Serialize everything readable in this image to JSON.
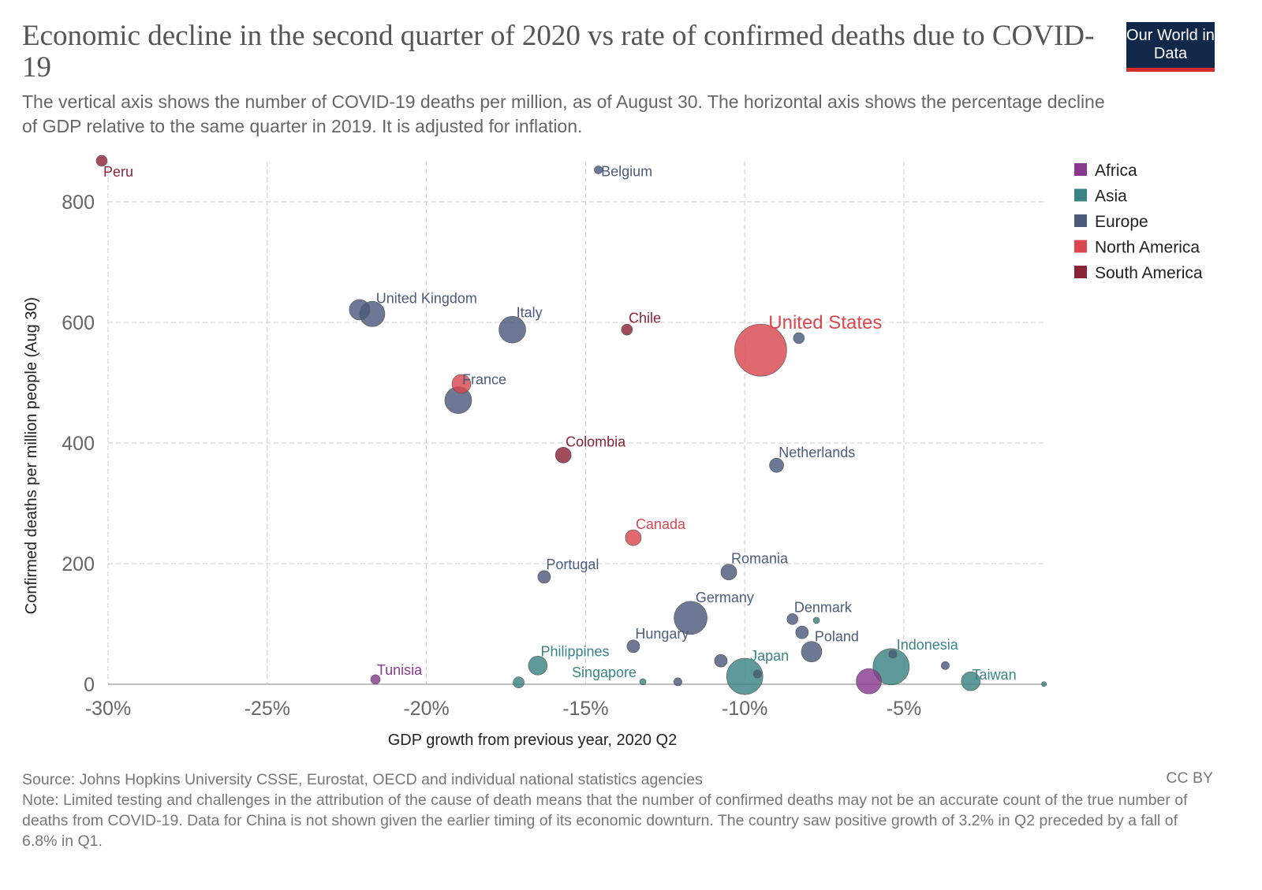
{
  "title": "Economic decline in the second quarter of 2020 vs rate of confirmed deaths due to COVID-19",
  "subtitle": "The vertical axis shows the number of COVID-19 deaths per million, as of August 30. The horizontal axis shows the percentage decline of GDP relative to the same quarter in 2019. It is adjusted for inflation.",
  "logo": "Our World in Data",
  "footer": {
    "source": "Source: Johns Hopkins University CSSE, Eurostat, OECD and individual national statistics agencies",
    "note": "Note: Limited testing and challenges in the attribution of the cause of death means that the number of confirmed deaths may not be an accurate count of the true number of deaths from COVID-19. Data for China is not shown given the earlier timing of its economic downturn. The country saw positive growth of 3.2% in Q2 preceded by a fall of 6.8% in Q1.",
    "license": "CC BY"
  },
  "chart_data": {
    "type": "scatter",
    "xlabel": "GDP growth from previous year, 2020 Q2",
    "ylabel": "Confirmed deaths per million people (Aug 30)",
    "xlim": [
      -30,
      0
    ],
    "ylim": [
      0,
      800
    ],
    "xticks": [
      -30,
      -25,
      -20,
      -15,
      -10,
      -5
    ],
    "xtick_labels": [
      "-30%",
      "-25%",
      "-20%",
      "-15%",
      "-10%",
      "-5%"
    ],
    "yticks": [
      0,
      200,
      400,
      600,
      800
    ],
    "ytick_labels": [
      "0",
      "200",
      "400",
      "600",
      "800"
    ],
    "grid": true,
    "legend_placement": "right",
    "legend": [
      {
        "name": "Africa",
        "color": "#883a8f"
      },
      {
        "name": "Asia",
        "color": "#3a8483"
      },
      {
        "name": "Europe",
        "color": "#4c5a7c"
      },
      {
        "name": "North America",
        "color": "#d9474f"
      },
      {
        "name": "South America",
        "color": "#8c2439"
      }
    ],
    "points": [
      {
        "label": "Peru",
        "region": "South America",
        "x": -30.2,
        "y": 868,
        "size": 15
      },
      {
        "label": "Belgium",
        "region": "Europe",
        "x": -14.6,
        "y": 853,
        "size": 8
      },
      {
        "label": "",
        "region": "Europe",
        "x": -22.1,
        "y": 621,
        "size": 52
      },
      {
        "label": "United Kingdom",
        "region": "Europe",
        "x": -21.7,
        "y": 614,
        "size": 79
      },
      {
        "label": "Italy",
        "region": "Europe",
        "x": -17.3,
        "y": 588,
        "size": 89
      },
      {
        "label": "Chile",
        "region": "South America",
        "x": -13.7,
        "y": 588,
        "size": 15
      },
      {
        "label": "United States",
        "region": "North America",
        "x": -9.5,
        "y": 554,
        "size": 336
      },
      {
        "label": "",
        "region": "Europe",
        "x": -8.3,
        "y": 574,
        "size": 15
      },
      {
        "label": "",
        "region": "North America",
        "x": -18.9,
        "y": 498,
        "size": 44
      },
      {
        "label": "France",
        "region": "Europe",
        "x": -19.0,
        "y": 471,
        "size": 89
      },
      {
        "label": "Colombia",
        "region": "South America",
        "x": -15.7,
        "y": 380,
        "size": 31
      },
      {
        "label": "Netherlands",
        "region": "Europe",
        "x": -9.0,
        "y": 363,
        "size": 25
      },
      {
        "label": "Canada",
        "region": "North America",
        "x": -13.5,
        "y": 243,
        "size": 31
      },
      {
        "label": "Portugal",
        "region": "Europe",
        "x": -16.3,
        "y": 178,
        "size": 20
      },
      {
        "label": "Romania",
        "region": "Europe",
        "x": -10.5,
        "y": 186,
        "size": 31
      },
      {
        "label": "Germany",
        "region": "Europe",
        "x": -11.7,
        "y": 110,
        "size": 136
      },
      {
        "label": "Denmark",
        "region": "Europe",
        "x": -8.5,
        "y": 108,
        "size": 15
      },
      {
        "label": "",
        "region": "Asia",
        "x": -7.75,
        "y": 106,
        "size": 5
      },
      {
        "label": "",
        "region": "Europe",
        "x": -8.2,
        "y": 86,
        "size": 20
      },
      {
        "label": "Poland",
        "region": "Europe",
        "x": -7.9,
        "y": 54,
        "size": 52
      },
      {
        "label": "Hungary",
        "region": "Europe",
        "x": -13.5,
        "y": 63,
        "size": 20
      },
      {
        "label": "Philippines",
        "region": "Asia",
        "x": -16.5,
        "y": 31,
        "size": 44
      },
      {
        "label": "Tunisia",
        "region": "Africa",
        "x": -21.6,
        "y": 8,
        "size": 11
      },
      {
        "label": "",
        "region": "Asia",
        "x": -17.1,
        "y": 3,
        "size": 15
      },
      {
        "label": "Singapore",
        "region": "Asia",
        "x": -13.2,
        "y": 4,
        "size": 5
      },
      {
        "label": "",
        "region": "Europe",
        "x": -12.1,
        "y": 4,
        "size": 8
      },
      {
        "label": "",
        "region": "Europe",
        "x": -10.75,
        "y": 39,
        "size": 20
      },
      {
        "label": "Japan",
        "region": "Asia",
        "x": -10.0,
        "y": 13,
        "size": 163
      },
      {
        "label": "",
        "region": "Europe",
        "x": -9.6,
        "y": 17,
        "size": 8
      },
      {
        "label": "",
        "region": "Africa",
        "x": -6.1,
        "y": 5,
        "size": 79
      },
      {
        "label": "Indonesia",
        "region": "Asia",
        "x": -5.4,
        "y": 29,
        "size": 163
      },
      {
        "label": "",
        "region": "Europe",
        "x": -5.35,
        "y": 50,
        "size": 8
      },
      {
        "label": "",
        "region": "Europe",
        "x": -3.7,
        "y": 31,
        "size": 8
      },
      {
        "label": "",
        "region": "Asia",
        "x": -2.9,
        "y": 5,
        "size": 44
      },
      {
        "label": "Taiwan",
        "region": "Asia",
        "x": -0.6,
        "y": 0.3,
        "size": 3
      }
    ]
  }
}
